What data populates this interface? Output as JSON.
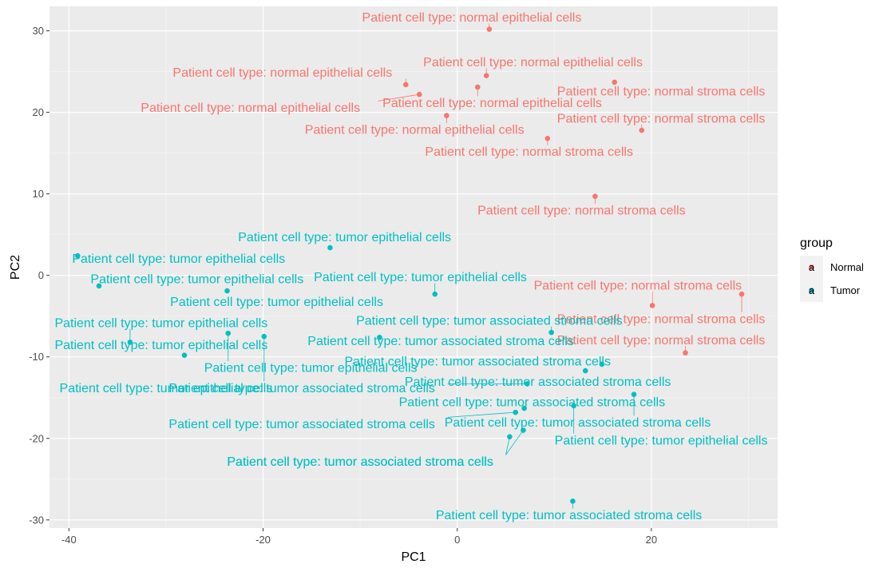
{
  "chart_data": {
    "type": "scatter",
    "title": "",
    "xlabel": "PC1",
    "ylabel": "PC2",
    "xlim": [
      -42,
      33
    ],
    "ylim": [
      -31,
      33
    ],
    "x_ticks": [
      -40,
      -20,
      0,
      20
    ],
    "y_ticks": [
      -30,
      -20,
      -10,
      0,
      10,
      20,
      30
    ],
    "grid": true,
    "legend": {
      "title": "group",
      "position": "right",
      "entries": [
        {
          "name": "Normal",
          "color": "#F8766D",
          "glyph": "a"
        },
        {
          "name": "Tumor",
          "color": "#00BFC4",
          "glyph": "a"
        }
      ]
    },
    "series": [
      {
        "name": "Normal",
        "color": "#F8766D",
        "points": [
          {
            "x": 3.3,
            "y": 30.2,
            "label": "Patient cell type: normal epithelial cells",
            "lx": 1.5,
            "ly": 31.7
          },
          {
            "x": 3.0,
            "y": 24.5,
            "label": "Patient cell type: normal epithelial cells",
            "lx": 7.8,
            "ly": 26.2
          },
          {
            "x": 2.1,
            "y": 23.1,
            "label": "Patient cell type: normal epithelial cells",
            "lx": 3.6,
            "ly": 21.2
          },
          {
            "x": -5.3,
            "y": 23.4,
            "label": "Patient cell type: normal epithelial cells",
            "lx": -18.0,
            "ly": 24.9
          },
          {
            "x": -3.9,
            "y": 22.2,
            "label": "Patient cell type: normal epithelial cells",
            "lx": -21.3,
            "ly": 20.6
          },
          {
            "x": -1.1,
            "y": 19.6,
            "label": "Patient cell type: normal epithelial cells",
            "lx": -4.4,
            "ly": 17.9
          },
          {
            "x": 16.2,
            "y": 23.7,
            "label": "Patient cell type: normal stroma cells",
            "lx": 21.0,
            "ly": 22.6
          },
          {
            "x": 19.0,
            "y": 17.8,
            "label": "Patient cell type: normal stroma cells",
            "lx": 21.0,
            "ly": 19.3
          },
          {
            "x": 9.3,
            "y": 16.8,
            "label": "Patient cell type: normal stroma cells",
            "lx": 7.4,
            "ly": 15.2
          },
          {
            "x": 14.2,
            "y": 9.7,
            "label": "Patient cell type: normal stroma cells",
            "lx": 12.8,
            "ly": 8.0
          },
          {
            "x": 20.1,
            "y": -3.7,
            "label": "Patient cell type: normal stroma cells",
            "lx": 18.6,
            "ly": -1.2
          },
          {
            "x": 29.3,
            "y": -2.3,
            "label": "Patient cell type: normal stroma cells",
            "lx": 21.0,
            "ly": -5.3
          },
          {
            "x": 23.5,
            "y": -9.5,
            "label": "Patient cell type: normal stroma cells",
            "lx": 21.0,
            "ly": -7.9
          }
        ]
      },
      {
        "name": "Tumor",
        "color": "#00BFC4",
        "points": [
          {
            "x": -13.1,
            "y": 3.4,
            "label": "Patient cell type: tumor epithelial cells",
            "lx": -11.6,
            "ly": 4.7
          },
          {
            "x": -39.1,
            "y": 2.4,
            "label": "Patient cell type: tumor epithelial cells",
            "lx": -28.7,
            "ly": 2.1
          },
          {
            "x": -36.9,
            "y": -1.3,
            "label": "Patient cell type: tumor epithelial cells",
            "lx": -26.8,
            "ly": -0.4
          },
          {
            "x": -23.7,
            "y": -1.9,
            "label": "Patient cell type: tumor epithelial cells",
            "lx": -18.6,
            "ly": -3.2
          },
          {
            "x": -2.3,
            "y": -2.3,
            "label": "Patient cell type: tumor epithelial cells",
            "lx": -3.8,
            "ly": -0.2
          },
          {
            "x": -33.7,
            "y": -8.2,
            "label": "Patient cell type: tumor epithelial cells",
            "lx": -30.5,
            "ly": -5.8
          },
          {
            "x": -28.1,
            "y": -9.8,
            "label": "Patient cell type: tumor epithelial cells",
            "lx": -30.5,
            "ly": -8.5
          },
          {
            "x": -23.6,
            "y": -7.1,
            "label": "Patient cell type: tumor epithelial cells",
            "lx": -15.1,
            "ly": -11.3
          },
          {
            "x": -19.9,
            "y": -7.5,
            "label": "Patient cell type: tumor epithelial cells",
            "lx": -30.0,
            "ly": -13.8
          },
          {
            "x": 12.0,
            "y": -16.0,
            "label": "Patient cell type: tumor epithelial cells",
            "lx": 21.0,
            "ly": -20.2
          },
          {
            "x": 9.7,
            "y": -7.0,
            "label": "Patient cell type: tumor associated stroma cells",
            "lx": 3.3,
            "ly": -5.5
          },
          {
            "x": -8.0,
            "y": -7.6,
            "label": "Patient cell type: tumor associated stroma cells",
            "lx": -1.7,
            "ly": -8.0
          },
          {
            "x": 14.9,
            "y": -10.9,
            "label": "Patient cell type: tumor associated stroma cells",
            "lx": 2.1,
            "ly": -10.5
          },
          {
            "x": 13.2,
            "y": -11.7,
            "label": "Patient cell type: tumor associated stroma cells",
            "lx": 8.3,
            "ly": -13.0
          },
          {
            "x": 7.2,
            "y": -13.3,
            "label": "Patient cell type: tumor associated stroma cells",
            "lx": -16.0,
            "ly": -13.8
          },
          {
            "x": 6.9,
            "y": -16.3,
            "label": "Patient cell type: tumor associated stroma cells",
            "lx": 7.7,
            "ly": -15.5
          },
          {
            "x": 18.2,
            "y": -14.6,
            "label": "Patient cell type: tumor associated stroma cells",
            "lx": 12.4,
            "ly": -18.0
          },
          {
            "x": 6.0,
            "y": -16.8,
            "label": "Patient cell type: tumor associated stroma cells",
            "lx": -16.0,
            "ly": -18.2
          },
          {
            "x": 6.8,
            "y": -19.0,
            "label": "Patient cell type: tumor associated stroma cells",
            "lx": -10.0,
            "ly": -22.8
          },
          {
            "x": 5.4,
            "y": -19.8,
            "label": "Patient cell type: tumor associated stroma cells",
            "lx": -10.0,
            "ly": -22.8
          },
          {
            "x": 11.9,
            "y": -27.7,
            "label": "Patient cell type: tumor associated stroma cells",
            "lx": 11.5,
            "ly": -29.4
          }
        ]
      }
    ]
  }
}
